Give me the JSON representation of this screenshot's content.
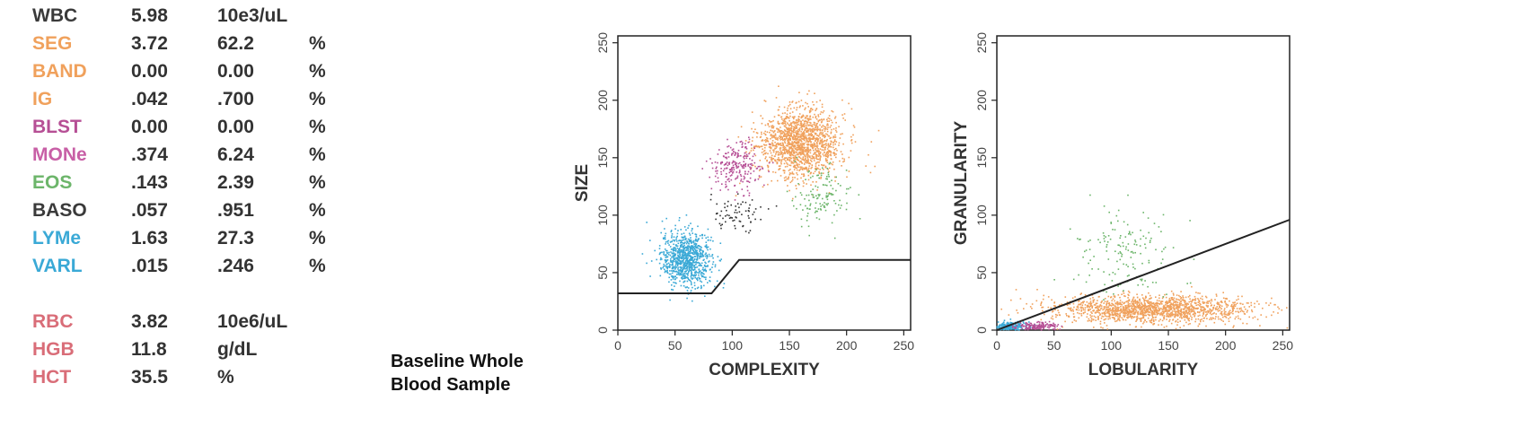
{
  "results": [
    {
      "name": "WBC",
      "value": "5.98",
      "unit": "10e3/uL",
      "pct": "",
      "color": "#3a3a3a"
    },
    {
      "name": "SEG",
      "value": "3.72",
      "unit": "62.2",
      "pct": "%",
      "color": "#f0a15c"
    },
    {
      "name": "BAND",
      "value": "0.00",
      "unit": "0.00",
      "pct": "%",
      "color": "#f0a15c"
    },
    {
      "name": "IG",
      "value": ".042",
      "unit": ".700",
      "pct": "%",
      "color": "#f0a15c"
    },
    {
      "name": "BLST",
      "value": "0.00",
      "unit": "0.00",
      "pct": "%",
      "color": "#b64f95"
    },
    {
      "name": "MONe",
      "value": ".374",
      "unit": "6.24",
      "pct": "%",
      "color": "#c85fa6"
    },
    {
      "name": "EOS",
      "value": ".143",
      "unit": "2.39",
      "pct": "%",
      "color": "#6cb56a"
    },
    {
      "name": "BASO",
      "value": ".057",
      "unit": ".951",
      "pct": "%",
      "color": "#3a3a3a"
    },
    {
      "name": "LYMe",
      "value": "1.63",
      "unit": "27.3",
      "pct": "%",
      "color": "#3aa9d6"
    },
    {
      "name": "VARL",
      "value": ".015",
      "unit": ".246",
      "pct": "%",
      "color": "#3aa9d6"
    },
    {
      "name": "RBC",
      "value": "3.82",
      "unit": "10e6/uL",
      "pct": "",
      "color": "#d96d78"
    },
    {
      "name": "HGB",
      "value": "11.8",
      "unit": "g/dL",
      "pct": "",
      "color": "#d96d78"
    },
    {
      "name": "HCT",
      "value": "35.5",
      "unit": "%",
      "pct": "",
      "color": "#d96d78"
    }
  ],
  "caption": {
    "line1": "Baseline Whole",
    "line2": "Blood Sample"
  },
  "chart_data": [
    {
      "type": "scatter",
      "xlabel": "COMPLEXITY",
      "ylabel": "SIZE",
      "xlim": [
        0,
        256
      ],
      "ylim": [
        0,
        256
      ],
      "xticks": [
        0,
        50,
        100,
        150,
        200,
        250
      ],
      "yticks": [
        0,
        50,
        100,
        150,
        200,
        250
      ],
      "grid": false,
      "gate_line": [
        [
          0,
          32
        ],
        [
          82,
          32
        ],
        [
          106,
          61
        ],
        [
          256,
          61
        ]
      ],
      "clusters": [
        {
          "population": "LYMe",
          "color": "#3aa9d6",
          "center": [
            60,
            62
          ],
          "spread": [
            11,
            12
          ],
          "count": 900
        },
        {
          "population": "SEG",
          "color": "#f0a15c",
          "center": [
            160,
            163
          ],
          "spread": [
            18,
            15
          ],
          "count": 1500
        },
        {
          "population": "MONe",
          "color": "#b64f95",
          "center": [
            103,
            142
          ],
          "spread": [
            12,
            11
          ],
          "count": 230
        },
        {
          "population": "BASO",
          "color": "#333333",
          "center": [
            104,
            100
          ],
          "spread": [
            12,
            9
          ],
          "count": 70
        },
        {
          "population": "EOS",
          "color": "#6cb56a",
          "center": [
            178,
            118
          ],
          "spread": [
            13,
            11
          ],
          "count": 130
        }
      ]
    },
    {
      "type": "scatter",
      "xlabel": "LOBULARITY",
      "ylabel": "GRANULARITY",
      "xlim": [
        0,
        256
      ],
      "ylim": [
        0,
        256
      ],
      "xticks": [
        0,
        50,
        100,
        150,
        200,
        250
      ],
      "yticks": [
        0,
        50,
        100,
        150,
        200,
        250
      ],
      "grid": false,
      "gate_line": [
        [
          0,
          0
        ],
        [
          256,
          96
        ]
      ],
      "clusters": [
        {
          "population": "SEG",
          "color": "#f0a15c",
          "center": [
            135,
            18
          ],
          "spread": [
            45,
            6
          ],
          "count": 1500
        },
        {
          "population": "EOS",
          "color": "#6cb56a",
          "center": [
            115,
            70
          ],
          "spread": [
            20,
            22
          ],
          "count": 150
        },
        {
          "population": "LYMe",
          "color": "#3aa9d6",
          "center": [
            12,
            3
          ],
          "spread": [
            8,
            2
          ],
          "count": 250
        },
        {
          "population": "MONe",
          "color": "#b64f95",
          "center": [
            35,
            3
          ],
          "spread": [
            10,
            2
          ],
          "count": 160
        }
      ]
    }
  ]
}
